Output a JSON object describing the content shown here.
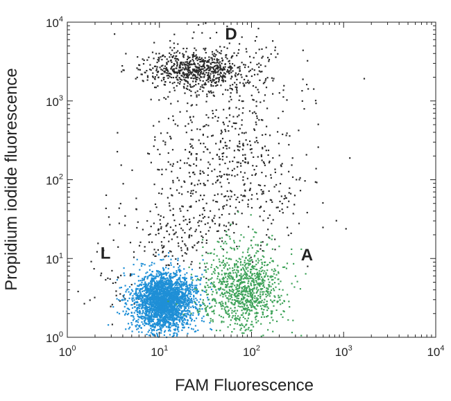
{
  "chart_data": {
    "type": "scatter",
    "title": "",
    "xlabel": "FAM Fluorescence",
    "ylabel": "Propidium iodide fluorescence",
    "xscale": "log",
    "yscale": "log",
    "xlim": [
      1,
      10000
    ],
    "ylim": [
      1,
      10000
    ],
    "grid": false,
    "x_ticks": [
      {
        "base": "10",
        "exp": "0"
      },
      {
        "base": "10",
        "exp": "1"
      },
      {
        "base": "10",
        "exp": "2"
      },
      {
        "base": "10",
        "exp": "3"
      },
      {
        "base": "10",
        "exp": "4"
      }
    ],
    "y_ticks": [
      {
        "base": "10",
        "exp": "0"
      },
      {
        "base": "10",
        "exp": "1"
      },
      {
        "base": "10",
        "exp": "2"
      },
      {
        "base": "10",
        "exp": "3"
      },
      {
        "base": "10",
        "exp": "4"
      }
    ],
    "annotations": [
      {
        "text": "D",
        "x": 60,
        "y": 6000
      },
      {
        "text": "L",
        "x": 2.6,
        "y": 10
      },
      {
        "text": "A",
        "x": 400,
        "y": 9.5
      }
    ],
    "series": [
      {
        "color": "#2a2a2a",
        "clusters": [
          {
            "cx": 25,
            "cy": 2500,
            "sx": 0.28,
            "sy": 0.12,
            "n": 650
          },
          {
            "cx": 60,
            "cy": 1200,
            "sx": 0.45,
            "sy": 0.45,
            "n": 260
          },
          {
            "cx": 40,
            "cy": 150,
            "sx": 0.4,
            "sy": 0.45,
            "n": 330
          },
          {
            "cx": 18,
            "cy": 22,
            "sx": 0.3,
            "sy": 0.25,
            "n": 180
          },
          {
            "cx": 150,
            "cy": 60,
            "sx": 0.35,
            "sy": 0.4,
            "n": 110
          },
          {
            "cx": 3,
            "cy": 5,
            "sx": 0.22,
            "sy": 0.25,
            "n": 35
          }
        ]
      },
      {
        "color": "#1f8fd6",
        "clusters": [
          {
            "cx": 11,
            "cy": 2.8,
            "sx": 0.17,
            "sy": 0.19,
            "n": 2600
          }
        ]
      },
      {
        "color": "#3fa35a",
        "clusters": [
          {
            "cx": 80,
            "cy": 4.2,
            "sx": 0.22,
            "sy": 0.28,
            "n": 1000
          }
        ]
      }
    ]
  }
}
